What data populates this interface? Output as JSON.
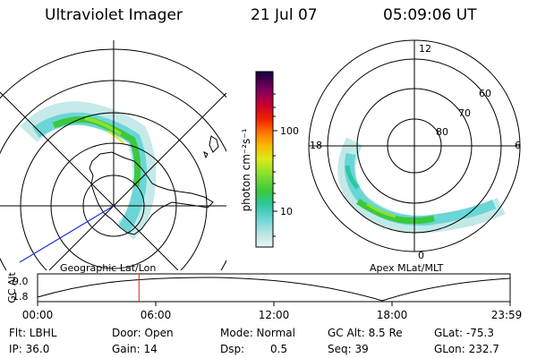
{
  "header": {
    "title": "Ultraviolet Imager",
    "date": "21 Jul 07",
    "time": "05:09:06 UT"
  },
  "left_map": {
    "caption": "Geographic Lat/Lon"
  },
  "right_map": {
    "caption": "Apex MLat/MLT",
    "mlt_labels": {
      "top": "12",
      "left": "18",
      "right": "6",
      "bottom": "0"
    },
    "lat_labels": [
      "60",
      "70",
      "80"
    ]
  },
  "colorbar": {
    "unit": "photon cm⁻²s⁻¹",
    "ticks": [
      "100",
      "10"
    ],
    "colors": [
      "#e8f4f4",
      "#b8e4e4",
      "#6ad6d6",
      "#2ec8a0",
      "#3cc83c",
      "#8ee02c",
      "#dcea18",
      "#f6b800",
      "#ff7800",
      "#f02000",
      "#c80030",
      "#7a0060",
      "#14003c"
    ]
  },
  "altitude_plot": {
    "ylabel": "GC Alt",
    "yticks": [
      "9.0",
      "1.8"
    ],
    "xticks": [
      "00:00",
      "06:00",
      "12:00",
      "18:00",
      "23:59"
    ],
    "current_time_hours": 5.15
  },
  "info": {
    "flt": "Flt: LBHL",
    "ip": "IP: 36.0",
    "door": "Door: Open",
    "gain": "Gain: 14",
    "mode": "Mode: Normal",
    "dsp_label": "Dsp:",
    "dsp_value": "0.5",
    "gc_alt": "GC Alt: 8.5 Re",
    "seq": "Seq: 39",
    "glat": "GLat: -75.3",
    "glon": "GLon: 232.7"
  }
}
